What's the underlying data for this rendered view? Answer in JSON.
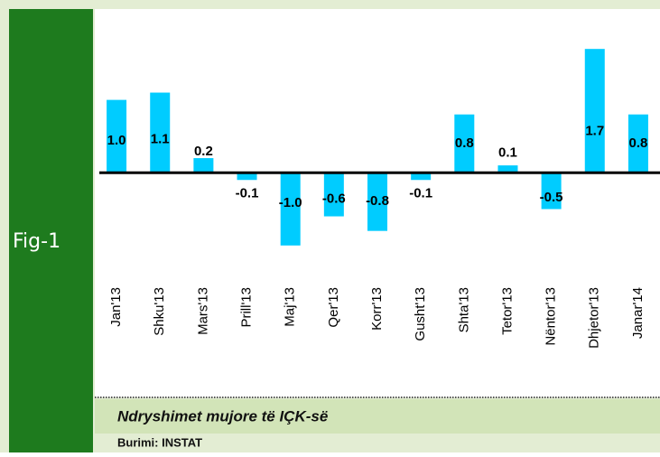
{
  "figure_label": "Fig-1",
  "chart_data": {
    "type": "bar",
    "title": "Ndryshimet mujore të IÇK-së",
    "source": "Burimi: INSTAT",
    "categories": [
      "Jan'13",
      "Shku'13",
      "Mars'13",
      "Prill'13",
      "Maj'13",
      "Qer'13",
      "Korr'13",
      "Gusht'13",
      "Shta'13",
      "Tetor'13",
      "Nëntor'13",
      "Dhjetor'13",
      "Janar'14"
    ],
    "values": [
      1.0,
      1.1,
      0.2,
      -0.1,
      -1.0,
      -0.6,
      -0.8,
      -0.1,
      0.8,
      0.1,
      -0.5,
      1.7,
      0.8
    ],
    "value_labels": [
      "1.0",
      "1.1",
      "0.2",
      "-0.1",
      "-1.0",
      "-0.6",
      "-0.8",
      "-0.1",
      "0.8",
      "0.1",
      "-0.5",
      "1.7",
      "0.8"
    ],
    "color": "#00ccff",
    "ylim": [
      -1.35,
      2.0
    ]
  }
}
